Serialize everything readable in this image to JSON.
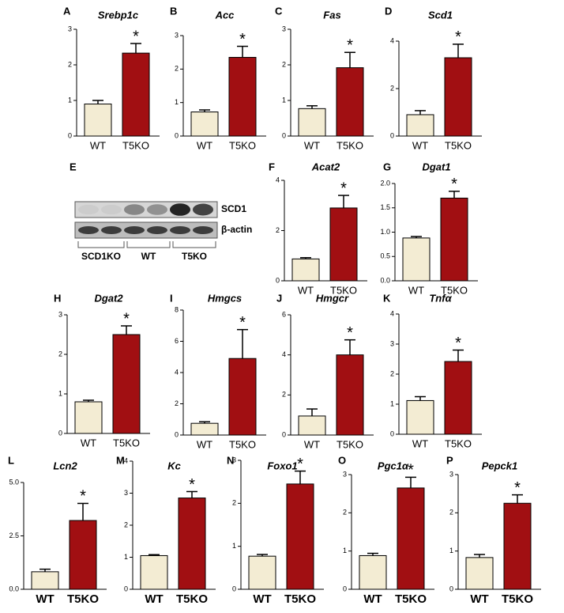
{
  "chart_data": [
    {
      "type": "bar",
      "panel": "A",
      "title": "Srebp1c",
      "categories": [
        "WT",
        "T5KO"
      ],
      "values": [
        0.9,
        2.33
      ],
      "errors": [
        0.1,
        0.27
      ],
      "colors": [
        "#f3ecd3",
        "#a10f12"
      ],
      "annotation": "*",
      "ylim": [
        0,
        3
      ],
      "yticks": [
        0,
        1,
        2,
        3
      ]
    },
    {
      "type": "bar",
      "panel": "B",
      "title": "Acc",
      "categories": [
        "WT",
        "T5KO"
      ],
      "values": [
        0.72,
        2.35
      ],
      "errors": [
        0.06,
        0.33
      ],
      "colors": [
        "#f3ecd3",
        "#a10f12"
      ],
      "annotation": "*",
      "ylim": [
        0,
        3
      ],
      "yticks": [
        0,
        1,
        2,
        3
      ]
    },
    {
      "type": "bar",
      "panel": "C",
      "title": "Fas",
      "categories": [
        "WT",
        "T5KO"
      ],
      "values": [
        0.77,
        1.92
      ],
      "errors": [
        0.08,
        0.43
      ],
      "colors": [
        "#f3ecd3",
        "#a10f12"
      ],
      "annotation": "*",
      "ylim": [
        0,
        3
      ],
      "yticks": [
        0,
        1,
        2,
        3
      ]
    },
    {
      "type": "bar",
      "panel": "D",
      "title": "Scd1",
      "categories": [
        "WT",
        "T5KO"
      ],
      "values": [
        0.9,
        3.3
      ],
      "errors": [
        0.17,
        0.57
      ],
      "colors": [
        "#f3ecd3",
        "#a10f12"
      ],
      "annotation": "*",
      "ylim": [
        0,
        4
      ],
      "yticks": [
        0,
        2,
        4
      ]
    },
    {
      "type": "blot",
      "panel": "E",
      "bands": [
        "SCD1",
        "β-actin"
      ],
      "groups": [
        "SCD1KO",
        "WT",
        "T5KO"
      ]
    },
    {
      "type": "bar",
      "panel": "F",
      "title": "Acat2",
      "categories": [
        "WT",
        "T5KO"
      ],
      "values": [
        0.87,
        2.9
      ],
      "errors": [
        0.05,
        0.5
      ],
      "colors": [
        "#f3ecd3",
        "#a10f12"
      ],
      "annotation": "*",
      "ylim": [
        0,
        4
      ],
      "yticks": [
        0,
        2,
        4
      ]
    },
    {
      "type": "bar",
      "panel": "G",
      "title": "Dgat1",
      "categories": [
        "WT",
        "T5KO"
      ],
      "values": [
        0.88,
        1.7
      ],
      "errors": [
        0.03,
        0.14
      ],
      "colors": [
        "#f3ecd3",
        "#a10f12"
      ],
      "annotation": "*",
      "ylim": [
        0,
        2
      ],
      "yticks": [
        {
          "value": 0,
          "label": "0.0"
        },
        {
          "value": 0.5,
          "label": "0.5"
        },
        {
          "value": 1,
          "label": "1.0"
        },
        {
          "value": 1.5,
          "label": "1.5"
        },
        {
          "value": 2,
          "label": "2.0"
        }
      ]
    },
    {
      "type": "bar",
      "panel": "H",
      "title": "Dgat2",
      "categories": [
        "WT",
        "T5KO"
      ],
      "values": [
        0.8,
        2.5
      ],
      "errors": [
        0.04,
        0.22
      ],
      "colors": [
        "#f3ecd3",
        "#a10f12"
      ],
      "annotation": "*",
      "ylim": [
        0,
        3
      ],
      "yticks": [
        0,
        1,
        2,
        3
      ]
    },
    {
      "type": "bar",
      "panel": "I",
      "title": "Hmgcs",
      "categories": [
        "WT",
        "T5KO"
      ],
      "values": [
        0.75,
        4.9
      ],
      "errors": [
        0.1,
        1.85
      ],
      "colors": [
        "#f3ecd3",
        "#a10f12"
      ],
      "annotation": "*",
      "ylim": [
        0,
        8
      ],
      "yticks": [
        0,
        2,
        4,
        6,
        8
      ]
    },
    {
      "type": "bar",
      "panel": "J",
      "title": "Hmgcr",
      "categories": [
        "WT",
        "T5KO"
      ],
      "values": [
        0.95,
        4.0
      ],
      "errors": [
        0.35,
        0.75
      ],
      "colors": [
        "#f3ecd3",
        "#a10f12"
      ],
      "annotation": "*",
      "ylim": [
        0,
        6
      ],
      "yticks": [
        0,
        2,
        4,
        6
      ]
    },
    {
      "type": "bar",
      "panel": "K",
      "title": "Tnfα",
      "categories": [
        "WT",
        "T5KO"
      ],
      "values": [
        1.12,
        2.42
      ],
      "errors": [
        0.13,
        0.38
      ],
      "colors": [
        "#f3ecd3",
        "#a10f12"
      ],
      "annotation": "*",
      "ylim": [
        0,
        4
      ],
      "yticks": [
        0,
        1,
        2,
        3,
        4
      ]
    },
    {
      "type": "bar",
      "panel": "L",
      "title": "Lcn2",
      "categories": [
        "WT",
        "T5KO"
      ],
      "values": [
        0.82,
        3.22
      ],
      "errors": [
        0.12,
        0.8
      ],
      "colors": [
        "#f3ecd3",
        "#a10f12"
      ],
      "annotation": "*",
      "ylim": [
        0,
        5
      ],
      "yticks": [
        {
          "value": 0,
          "label": "0.0"
        },
        {
          "value": 2.5,
          "label": "2.5"
        },
        {
          "value": 5,
          "label": "5.0"
        }
      ]
    },
    {
      "type": "bar",
      "panel": "M",
      "title": "Kc",
      "categories": [
        "WT",
        "T5KO"
      ],
      "values": [
        1.05,
        2.85
      ],
      "errors": [
        0.03,
        0.2
      ],
      "colors": [
        "#f3ecd3",
        "#a10f12"
      ],
      "annotation": "*",
      "ylim": [
        0,
        4
      ],
      "yticks": [
        0,
        1,
        2,
        3,
        4
      ]
    },
    {
      "type": "bar",
      "panel": "N",
      "title": "Foxo1",
      "categories": [
        "WT",
        "T5KO"
      ],
      "values": [
        0.77,
        2.45
      ],
      "errors": [
        0.04,
        0.3
      ],
      "colors": [
        "#f3ecd3",
        "#a10f12"
      ],
      "annotation": "*",
      "ylim": [
        0,
        3
      ],
      "yticks": [
        0,
        1,
        2,
        3
      ]
    },
    {
      "type": "bar",
      "panel": "O",
      "title": "Pgc1α",
      "categories": [
        "WT",
        "T5KO"
      ],
      "values": [
        0.88,
        2.65
      ],
      "errors": [
        0.06,
        0.28
      ],
      "colors": [
        "#f3ecd3",
        "#a10f12"
      ],
      "annotation": "*",
      "ylim": [
        0,
        3
      ],
      "yticks": [
        0,
        1,
        2,
        3
      ]
    },
    {
      "type": "bar",
      "panel": "P",
      "title": "Pepck1",
      "categories": [
        "WT",
        "T5KO"
      ],
      "values": [
        0.83,
        2.25
      ],
      "errors": [
        0.08,
        0.22
      ],
      "colors": [
        "#f3ecd3",
        "#a10f12"
      ],
      "annotation": "*",
      "ylim": [
        0,
        3
      ],
      "yticks": [
        0,
        1,
        2,
        3
      ]
    }
  ]
}
